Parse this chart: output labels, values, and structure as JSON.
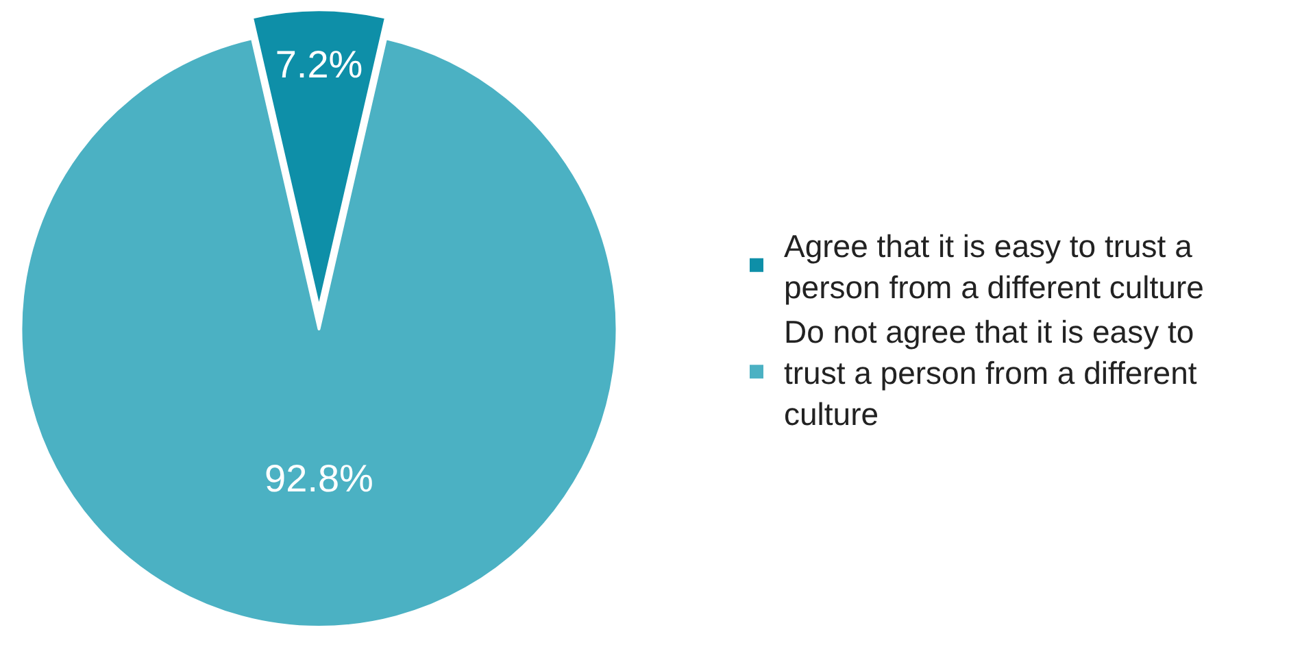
{
  "chart_data": {
    "type": "pie",
    "categories": [
      "Agree that it is easy to trust a person from a different culture",
      "Do not agree that it is easy to trust a person from a different culture"
    ],
    "values": [
      7.2,
      92.8
    ],
    "value_labels": [
      "7.2%",
      "92.8%"
    ],
    "colors": [
      "#0e8fa8",
      "#4bb1c3"
    ],
    "legend": "right"
  }
}
